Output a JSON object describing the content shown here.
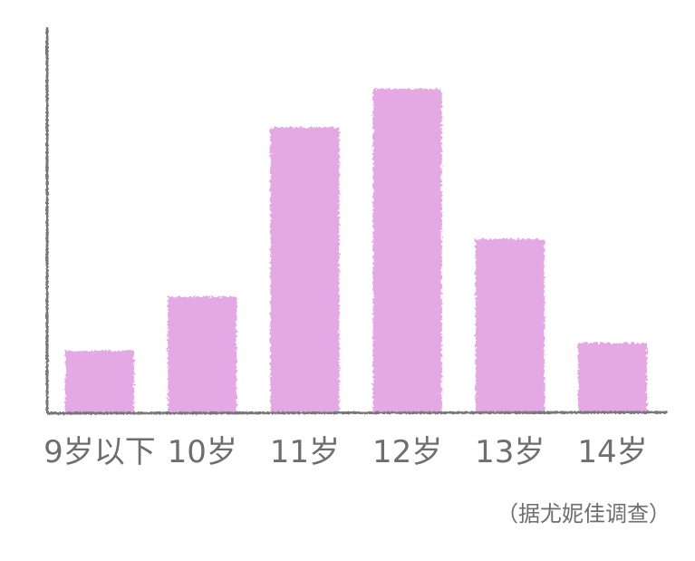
{
  "chart_data": {
    "type": "bar",
    "title": "",
    "xlabel": "",
    "ylabel": "",
    "categories": [
      "9岁以下",
      "10岁",
      "11岁",
      "12岁",
      "13岁",
      "14岁"
    ],
    "values": [
      16,
      30,
      74,
      84,
      45,
      18
    ],
    "ylim": [
      0,
      100
    ],
    "grid": false,
    "y_tick_labels_shown": false,
    "bar_color": "#e4a8e4",
    "axis_color": "#777777",
    "text_color": "#6e6e6e",
    "style": "hand-drawn",
    "annotation": "（据尤妮佳调查）"
  }
}
